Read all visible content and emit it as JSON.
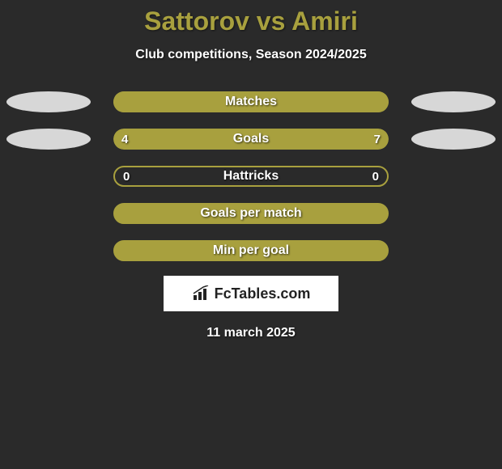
{
  "title": "Sattorov vs Amiri",
  "subtitle": "Club competitions, Season 2024/2025",
  "date": "11 march 2025",
  "logo_text": "FcTables.com",
  "colors": {
    "background": "#2a2a2a",
    "accent": "#a8a03e",
    "bar_border": "#8a8433",
    "oval": "#d7d7d7",
    "text": "#ffffff",
    "title": "#a8a03e"
  },
  "rows": [
    {
      "label": "Matches",
      "left_value": "",
      "right_value": "",
      "left_pct": 100,
      "right_pct": 0,
      "show_ovals": true,
      "bar_bg": "#a8a03e",
      "left_color": "#a8a03e",
      "right_color": "#a8a03e",
      "border": false
    },
    {
      "label": "Goals",
      "left_value": "4",
      "right_value": "7",
      "left_pct": 36,
      "right_pct": 64,
      "show_ovals": true,
      "bar_bg": "#2a2a2a",
      "left_color": "#a8a03e",
      "right_color": "#a8a03e",
      "border": false
    },
    {
      "label": "Hattricks",
      "left_value": "0",
      "right_value": "0",
      "left_pct": 0,
      "right_pct": 0,
      "show_ovals": false,
      "bar_bg": "#2a2a2a",
      "left_color": "#a8a03e",
      "right_color": "#a8a03e",
      "border": true
    },
    {
      "label": "Goals per match",
      "left_value": "",
      "right_value": "",
      "left_pct": 100,
      "right_pct": 0,
      "show_ovals": false,
      "bar_bg": "#a8a03e",
      "left_color": "#a8a03e",
      "right_color": "#a8a03e",
      "border": true
    },
    {
      "label": "Min per goal",
      "left_value": "",
      "right_value": "",
      "left_pct": 100,
      "right_pct": 0,
      "show_ovals": false,
      "bar_bg": "#a8a03e",
      "left_color": "#a8a03e",
      "right_color": "#a8a03e",
      "border": true
    }
  ]
}
